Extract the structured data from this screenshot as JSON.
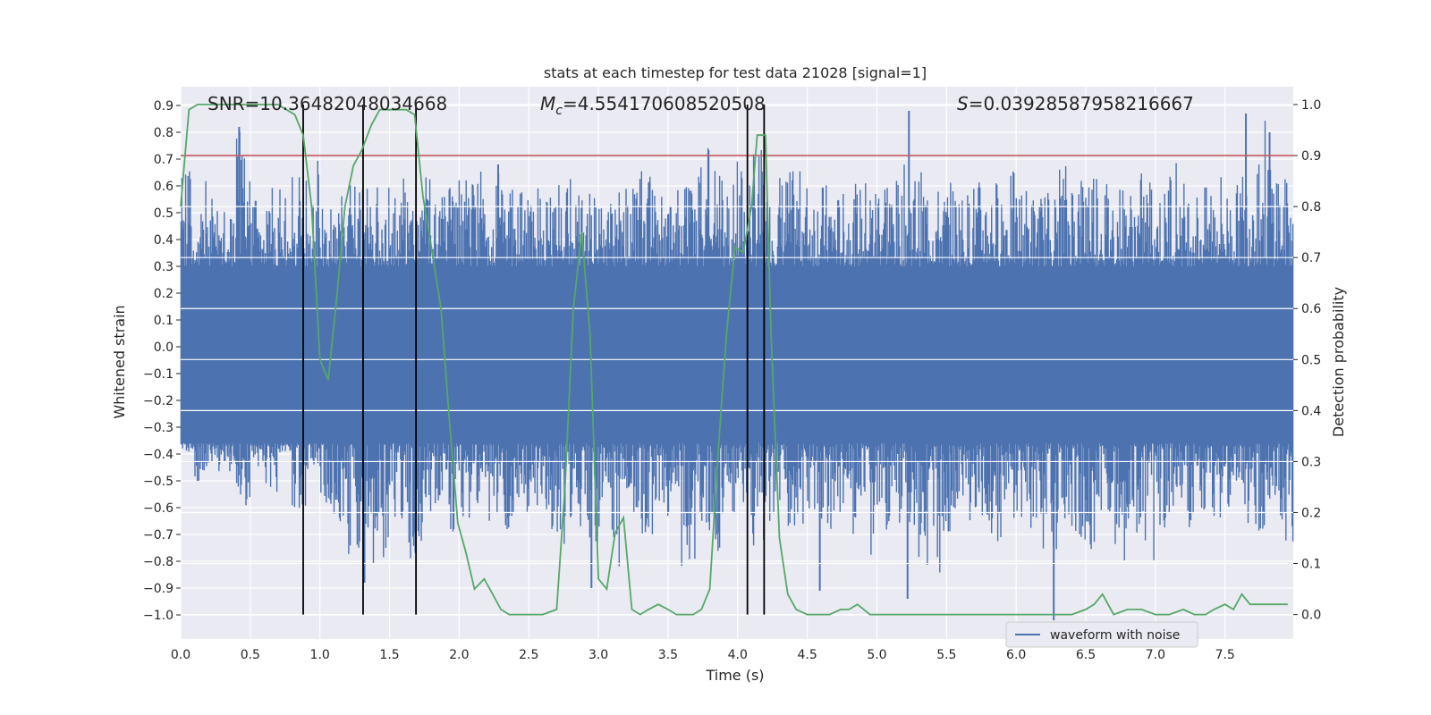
{
  "chart_data": {
    "type": "line",
    "title": "stats at each timestep for test data 21028 [signal=1]",
    "xlabel": "Time (s)",
    "ylabel_left": "Whitened strain",
    "ylabel_right": "Detection probability",
    "xlim": [
      0.0,
      7.99
    ],
    "ylim_left": [
      -1.09,
      0.97
    ],
    "ylim_right": [
      -0.048,
      1.035
    ],
    "x_ticks": [
      "0.0",
      "0.5",
      "1.0",
      "1.5",
      "2.0",
      "2.5",
      "3.0",
      "3.5",
      "4.0",
      "4.5",
      "5.0",
      "5.5",
      "6.0",
      "6.5",
      "7.0",
      "7.5"
    ],
    "y_ticks_left": [
      "-1.0",
      "-0.9",
      "-0.8",
      "-0.7",
      "-0.6",
      "-0.5",
      "-0.4",
      "-0.3",
      "-0.2",
      "-0.1",
      "0.0",
      "0.1",
      "0.2",
      "0.3",
      "0.4",
      "0.5",
      "0.6",
      "0.7",
      "0.8",
      "0.9"
    ],
    "y_ticks_right": [
      "0.0",
      "0.1",
      "0.2",
      "0.3",
      "0.4",
      "0.5",
      "0.6",
      "0.7",
      "0.8",
      "0.9",
      "1.0"
    ],
    "annotations": {
      "snr": "SNR=10.36482048034668",
      "mc_symbol": "M",
      "mc_sub": "c",
      "mc_value": "=4.554170608520508",
      "s_symbol": "S",
      "s_value": "=0.03928587958216667"
    },
    "threshold_line": {
      "value": 0.9,
      "axis": "right",
      "color": "#c44e52"
    },
    "vertical_markers": [
      0.88,
      1.31,
      1.69,
      4.07,
      4.19
    ],
    "waveform": {
      "name": "waveform with noise",
      "color": "#4c72b0",
      "envelope_min": [
        -0.4,
        -0.52,
        -0.48,
        -0.47,
        -0.6,
        -0.45,
        -0.55,
        -0.4,
        -0.62,
        -0.46,
        -0.6,
        -0.72,
        -0.8,
        -0.88,
        -0.8,
        -0.65,
        -0.79,
        -0.74,
        -0.6,
        -0.87,
        -0.67,
        -0.61,
        -0.65,
        -0.68,
        -0.62,
        -0.6,
        -0.7,
        -0.82,
        -0.7,
        -0.8,
        -0.68,
        -0.85,
        -0.62,
        -0.7,
        -0.6,
        -0.65,
        -0.88,
        -0.66,
        -0.78,
        -0.64,
        -0.7,
        -0.79,
        -0.74,
        -0.72,
        -0.68,
        -0.65,
        -0.7,
        -0.67,
        -0.72,
        -0.86,
        -0.7,
        -0.75,
        -0.68,
        -0.82,
        -0.92,
        -0.7,
        -0.66,
        -0.7,
        -0.74,
        -0.68,
        -0.65,
        -0.7,
        -0.76,
        -0.68,
        -0.72,
        -0.8,
        -0.62,
        -0.82,
        -0.7,
        -0.81,
        -0.68,
        -0.63,
        -0.68,
        -0.7,
        -0.64,
        -0.6,
        -0.66,
        -0.7,
        -0.6,
        -0.78
      ],
      "envelope_max": [
        0.67,
        0.63,
        0.57,
        0.56,
        0.82,
        0.55,
        0.6,
        0.62,
        0.66,
        0.7,
        0.55,
        0.57,
        0.62,
        0.61,
        0.6,
        0.62,
        0.65,
        0.7,
        0.58,
        0.62,
        0.64,
        0.67,
        0.66,
        0.61,
        0.59,
        0.6,
        0.57,
        0.66,
        0.64,
        0.62,
        0.55,
        0.63,
        0.6,
        0.69,
        0.65,
        0.62,
        0.6,
        0.76,
        0.66,
        0.62,
        0.7,
        0.74,
        0.6,
        0.67,
        0.66,
        0.64,
        0.62,
        0.58,
        0.61,
        0.64,
        0.72,
        0.63,
        0.68,
        0.66,
        0.6,
        0.62,
        0.59,
        0.63,
        0.64,
        0.66,
        0.61,
        0.58,
        0.59,
        0.7,
        0.68,
        0.74,
        0.64,
        0.62,
        0.6,
        0.66,
        0.59,
        0.73,
        0.63,
        0.6,
        0.67,
        0.61,
        0.68,
        0.87,
        0.75,
        0.64
      ],
      "spikes_up": [
        [
          0.42,
          0.82
        ],
        [
          5.23,
          0.88
        ],
        [
          7.65,
          0.87
        ],
        [
          7.82,
          0.8
        ],
        [
          2.28,
          0.68
        ]
      ],
      "spikes_down": [
        [
          2.95,
          -0.9
        ],
        [
          5.22,
          -0.94
        ],
        [
          6.27,
          -1.02
        ],
        [
          1.32,
          -0.88
        ],
        [
          4.59,
          -0.91
        ]
      ]
    },
    "probability": {
      "color": "#55a868",
      "x": [
        0.0,
        0.06,
        0.12,
        0.18,
        0.3,
        0.45,
        0.6,
        0.7,
        0.76,
        0.82,
        0.88,
        0.94,
        1.0,
        1.06,
        1.12,
        1.18,
        1.24,
        1.3,
        1.37,
        1.43,
        1.5,
        1.56,
        1.62,
        1.68,
        1.74,
        1.8,
        1.87,
        1.93,
        1.99,
        2.05,
        2.11,
        2.18,
        2.24,
        2.3,
        2.36,
        2.42,
        2.5,
        2.6,
        2.7,
        2.76,
        2.82,
        2.88,
        2.94,
        3.0,
        3.06,
        3.12,
        3.18,
        3.24,
        3.3,
        3.36,
        3.43,
        3.5,
        3.56,
        3.62,
        3.68,
        3.74,
        3.8,
        3.86,
        3.92,
        3.98,
        4.04,
        4.1,
        4.14,
        4.2,
        4.24,
        4.3,
        4.36,
        4.42,
        4.5,
        4.58,
        4.66,
        4.74,
        4.8,
        4.86,
        4.95,
        5.1,
        5.3,
        5.5,
        5.7,
        5.85,
        5.95,
        6.0,
        6.1,
        6.2,
        6.3,
        6.4,
        6.5,
        6.56,
        6.62,
        6.7,
        6.8,
        6.9,
        7.0,
        7.1,
        7.2,
        7.28,
        7.36,
        7.42,
        7.5,
        7.56,
        7.62,
        7.68,
        7.74,
        7.8,
        7.86,
        7.9,
        7.95
      ],
      "values": [
        0.8,
        0.99,
        1.0,
        1.0,
        1.0,
        1.0,
        1.0,
        1.0,
        0.99,
        0.98,
        0.94,
        0.8,
        0.5,
        0.46,
        0.62,
        0.8,
        0.88,
        0.91,
        0.96,
        0.99,
        0.99,
        0.99,
        0.99,
        0.98,
        0.82,
        0.72,
        0.6,
        0.38,
        0.18,
        0.12,
        0.05,
        0.07,
        0.04,
        0.01,
        0.0,
        0.0,
        0.0,
        0.0,
        0.01,
        0.25,
        0.6,
        0.75,
        0.55,
        0.07,
        0.05,
        0.16,
        0.19,
        0.01,
        0.0,
        0.01,
        0.02,
        0.01,
        0.0,
        0.0,
        0.0,
        0.01,
        0.05,
        0.32,
        0.55,
        0.72,
        0.71,
        0.8,
        0.94,
        0.94,
        0.55,
        0.15,
        0.04,
        0.01,
        0.0,
        0.0,
        0.0,
        0.01,
        0.01,
        0.02,
        0.0,
        0.0,
        0.0,
        0.0,
        0.0,
        0.0,
        0.0,
        0.0,
        0.0,
        0.0,
        0.0,
        0.0,
        0.01,
        0.02,
        0.04,
        0.0,
        0.01,
        0.01,
        0.0,
        0.0,
        0.01,
        0.0,
        0.0,
        0.01,
        0.02,
        0.01,
        0.04,
        0.02,
        0.02,
        0.02,
        0.02,
        0.02,
        0.02
      ]
    },
    "legend": {
      "position": "lower-right",
      "entries": [
        "waveform with noise"
      ]
    }
  }
}
